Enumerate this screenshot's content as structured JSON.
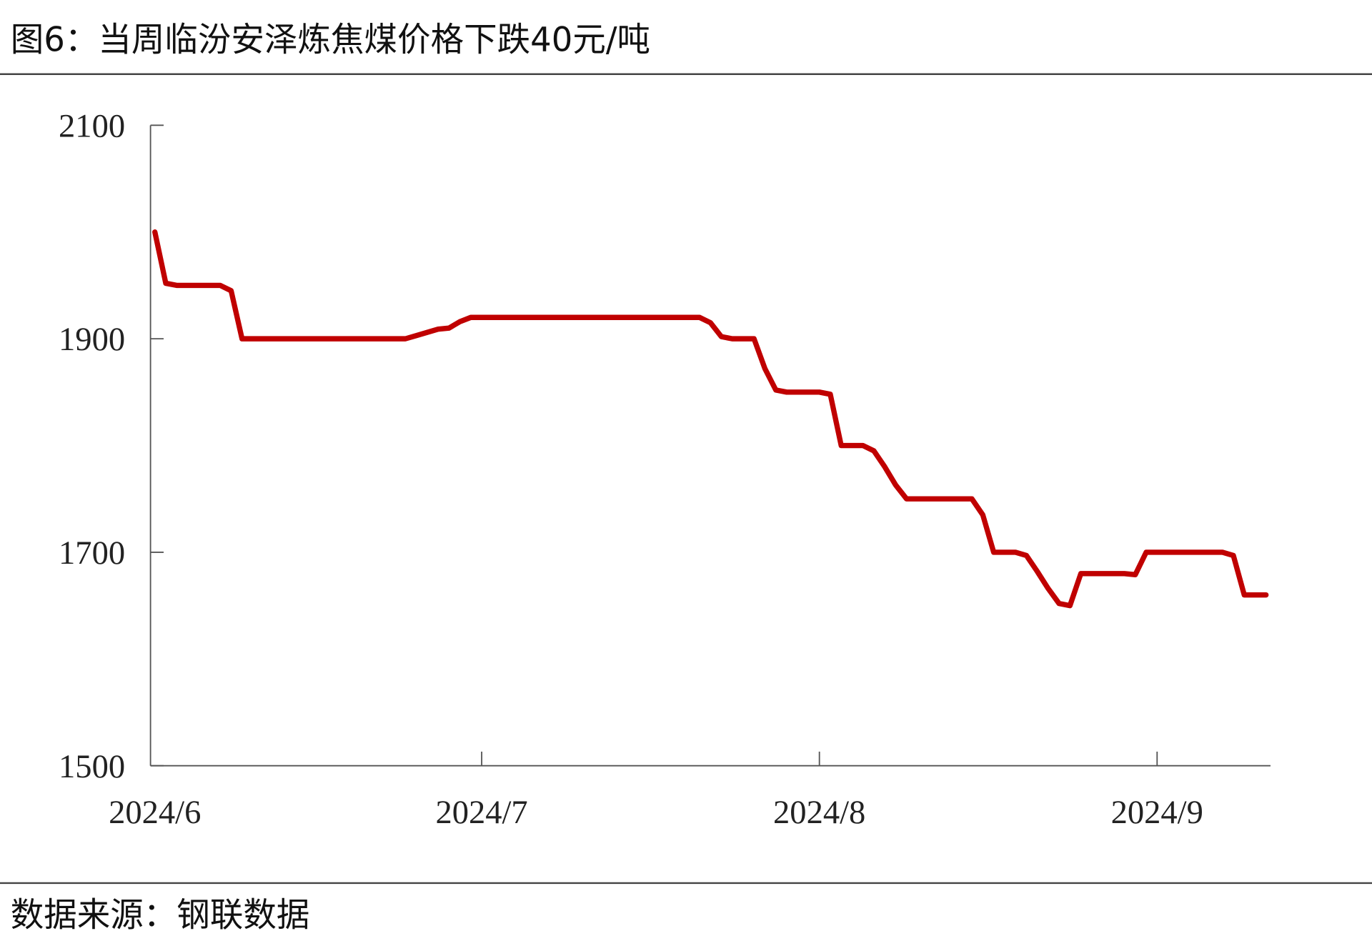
{
  "chart_data": {
    "type": "line",
    "title": "图6：当周临汾安泽炼焦煤价格下跌40元/吨",
    "source": "数据来源：钢联数据",
    "categories": [
      "2024/6",
      null,
      null,
      null,
      null,
      null,
      null,
      null,
      null,
      null,
      null,
      null,
      null,
      null,
      null,
      null,
      null,
      null,
      null,
      null,
      null,
      null,
      null,
      null,
      null,
      null,
      null,
      null,
      null,
      null,
      "2024/7",
      null,
      null,
      null,
      null,
      null,
      null,
      null,
      null,
      null,
      null,
      null,
      null,
      null,
      null,
      null,
      null,
      null,
      null,
      null,
      null,
      null,
      null,
      null,
      null,
      null,
      null,
      null,
      null,
      null,
      null,
      "2024/8",
      null,
      null,
      null,
      null,
      null,
      null,
      null,
      null,
      null,
      null,
      null,
      null,
      null,
      null,
      null,
      null,
      null,
      null,
      null,
      null,
      null,
      null,
      null,
      null,
      null,
      null,
      null,
      null,
      null,
      null,
      "2024/9",
      null,
      null,
      null,
      null,
      null,
      null,
      null,
      null,
      null,
      null
    ],
    "values": [
      2000,
      1952,
      1950,
      1950,
      1950,
      1950,
      1950,
      1945,
      1900,
      1900,
      1900,
      1900,
      1900,
      1900,
      1900,
      1900,
      1900,
      1900,
      1900,
      1900,
      1900,
      1900,
      1900,
      1900,
      1903,
      1906,
      1909,
      1910,
      1916,
      1920,
      1920,
      1920,
      1920,
      1920,
      1920,
      1920,
      1920,
      1920,
      1920,
      1920,
      1920,
      1920,
      1920,
      1920,
      1920,
      1920,
      1920,
      1920,
      1920,
      1920,
      1920,
      1915,
      1902,
      1900,
      1900,
      1900,
      1872,
      1852,
      1850,
      1850,
      1850,
      1850,
      1848,
      1800,
      1800,
      1800,
      1795,
      1780,
      1763,
      1750,
      1750,
      1750,
      1750,
      1750,
      1750,
      1750,
      1735,
      1700,
      1700,
      1700,
      1697,
      1682,
      1666,
      1652,
      1650,
      1680,
      1680,
      1680,
      1680,
      1680,
      1679,
      1700,
      1700,
      1700,
      1700,
      1700,
      1700,
      1700,
      1700,
      1697,
      1660,
      1660,
      1660
    ],
    "color": "#c00000",
    "ylim": [
      1500,
      2100
    ],
    "yticks": [
      1500,
      1700,
      1900,
      2100
    ]
  }
}
